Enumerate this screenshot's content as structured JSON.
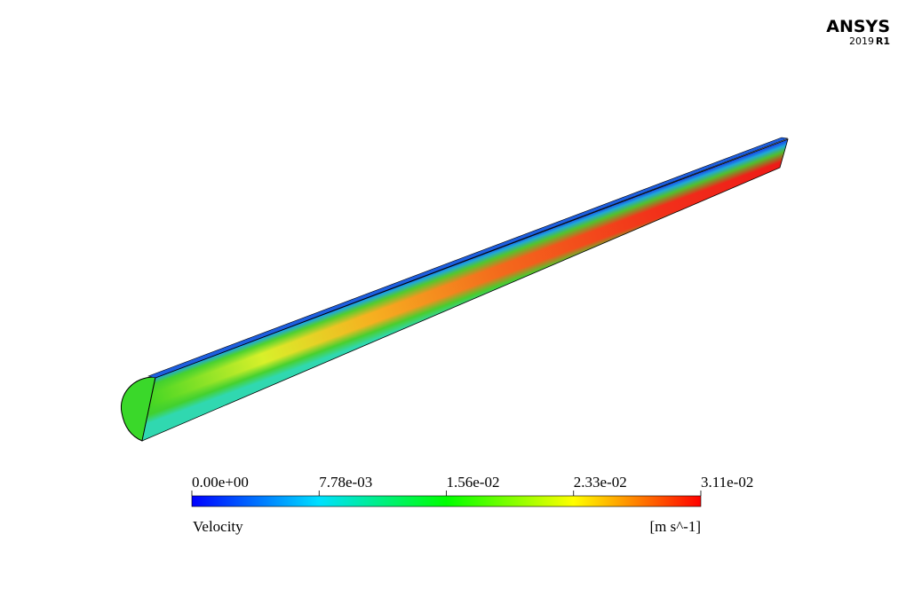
{
  "logo": {
    "brand": "ANSYS",
    "year": "2019",
    "release": "R1"
  },
  "legend": {
    "ticks": [
      "0.00e+00",
      "7.78e-03",
      "1.56e-02",
      "2.33e-02",
      "3.11e-02"
    ],
    "variable": "Velocity",
    "units": "[m s^-1]"
  }
}
